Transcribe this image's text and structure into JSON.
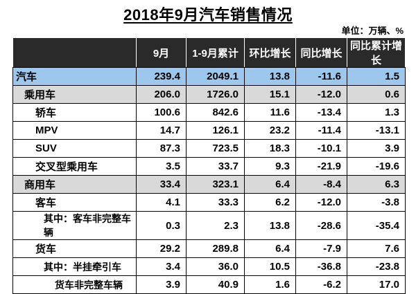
{
  "title": "2018年9月汽车销售情况",
  "unit": "单位：万辆、%",
  "columns": [
    "",
    "9月",
    "1-9月累计",
    "环比增长",
    "同比增长",
    "同比累计增长"
  ],
  "rows": [
    {
      "label": "汽车",
      "level": 0,
      "bg": "blue",
      "values": [
        "239.4",
        "2049.1",
        "13.8",
        "-11.6",
        "1.5"
      ]
    },
    {
      "label": "乘用车",
      "level": 1,
      "bg": "gray",
      "values": [
        "206.0",
        "1726.0",
        "15.1",
        "-12.0",
        "0.6"
      ]
    },
    {
      "label": "轿车",
      "level": 2,
      "bg": "white",
      "values": [
        "100.6",
        "842.6",
        "11.6",
        "-13.4",
        "1.3"
      ]
    },
    {
      "label": "MPV",
      "level": 2,
      "bg": "white",
      "values": [
        "14.7",
        "126.1",
        "23.2",
        "-11.4",
        "-13.1"
      ]
    },
    {
      "label": "SUV",
      "level": 2,
      "bg": "white",
      "values": [
        "87.3",
        "723.5",
        "18.3",
        "-10.1",
        "3.9"
      ]
    },
    {
      "label": "交叉型乘用车",
      "level": 2,
      "bg": "white",
      "values": [
        "3.5",
        "33.7",
        "9.3",
        "-21.9",
        "-19.6"
      ]
    },
    {
      "label": "商用车",
      "level": 1,
      "bg": "gray",
      "values": [
        "33.4",
        "323.1",
        "6.4",
        "-8.4",
        "6.3"
      ]
    },
    {
      "label": "客车",
      "level": 2,
      "bg": "white",
      "values": [
        "4.1",
        "33.3",
        "6.2",
        "-12.0",
        "-3.8"
      ]
    },
    {
      "label": "其中：客车非完整车辆",
      "level": 3,
      "bg": "white",
      "values": [
        "0.3",
        "2.3",
        "13.8",
        "-28.6",
        "-35.4"
      ]
    },
    {
      "label": "货车",
      "level": 2,
      "bg": "white",
      "values": [
        "29.2",
        "289.8",
        "6.4",
        "-7.9",
        "7.6"
      ]
    },
    {
      "label": "其中：半挂牵引车",
      "level": 3,
      "bg": "white",
      "values": [
        "3.4",
        "36.0",
        "10.5",
        "-36.8",
        "-23.8"
      ]
    },
    {
      "label": "货车非完整车辆",
      "level": 4,
      "bg": "white",
      "values": [
        "3.9",
        "40.9",
        "1.6",
        "-6.2",
        "17.0"
      ]
    }
  ]
}
